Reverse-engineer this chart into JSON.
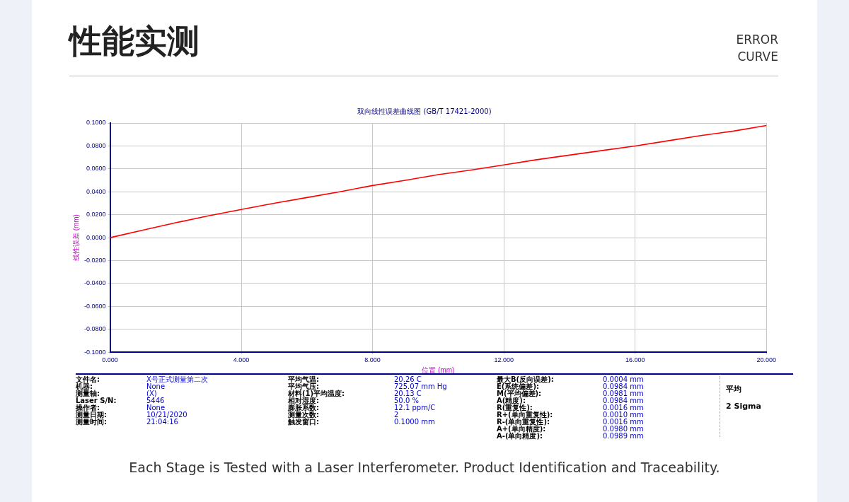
{
  "chart_data": {
    "type": "line",
    "title": "性能实测",
    "subtitle": "双向线性误差曲线图 (GB/T 17421-2000)",
    "xlabel": "位置 (mm)",
    "ylabel": "线性误差 (mm)",
    "x": [
      0,
      1,
      2,
      3,
      4,
      5,
      6,
      7,
      8,
      9,
      10,
      11,
      12,
      13,
      14,
      15,
      16,
      17,
      18,
      19,
      20
    ],
    "series": [
      {
        "color": "#ff0000",
        "values": [
          0,
          0.0065,
          0.013,
          0.019,
          0.0246,
          0.03,
          0.035,
          0.04,
          0.0455,
          0.05,
          0.055,
          0.059,
          0.0634,
          0.068,
          0.072,
          0.076,
          0.08,
          0.0845,
          0.089,
          0.093,
          0.0978
        ]
      }
    ],
    "xlim": [
      0,
      20
    ],
    "xticks": [
      {
        "value": 0,
        "label": "0.000"
      },
      {
        "value": 4,
        "label": "4.000"
      },
      {
        "value": 8,
        "label": "8.000"
      },
      {
        "value": 12,
        "label": "12.000"
      },
      {
        "value": 16,
        "label": "16.000"
      },
      {
        "value": 20,
        "label": "20.000"
      }
    ],
    "ylim": [
      -0.1,
      0.1
    ],
    "yticks": [
      {
        "value": -0.1,
        "label": "-0.1000"
      },
      {
        "value": -0.08,
        "label": "-0.0800"
      },
      {
        "value": -0.06,
        "label": "-0.0600"
      },
      {
        "value": -0.04,
        "label": "-0.0400"
      },
      {
        "value": -0.02,
        "label": "-0.0200"
      },
      {
        "value": 0,
        "label": "0.0000"
      },
      {
        "value": 0.02,
        "label": "0.0200"
      },
      {
        "value": 0.04,
        "label": "0.0400"
      },
      {
        "value": 0.06,
        "label": "0.0600"
      },
      {
        "value": 0.08,
        "label": "0.0800"
      },
      {
        "value": 0.1,
        "label": "0.1000"
      }
    ],
    "grid": true,
    "legend": false,
    "marker": "none",
    "line_style": "solid",
    "annotations": [
      "ERROR CURVE",
      "Each Stage is Tested with a Laser Interferometer. Product Identification and Traceability.",
      "文件名: X号正式测量第二次",
      "机器: None",
      "测量轴: (X)",
      "Laser S/N: 5446",
      "操作者: None",
      "测量日期: 10/21/2020",
      "测量时间: 21:04:16",
      "平均气温: 20.26 C",
      "平均气压: 725.07 mm Hg",
      "材料(1)平均温度: 20.13 C",
      "相对湿度: 50.0 %",
      "膨胀系数: 12.1 ppm/C",
      "测量次数: 2",
      "触发窗口: 0.1000 mm",
      "最大B(反向误差): 0.0004 mm",
      "E(系统偏差): 0.0984 mm",
      "M(平均偏差): 0.0981 mm",
      "A(精度): 0.0984 mm",
      "R(重复性): 0.0016 mm",
      "R+(单向重复性): 0.0010 mm",
      "R-(单向重复性): 0.0016 mm",
      "A+(单向精度): 0.0980 mm",
      "A-(单向精度): 0.0989 mm",
      "平均",
      "2 Sigma"
    ]
  }
}
